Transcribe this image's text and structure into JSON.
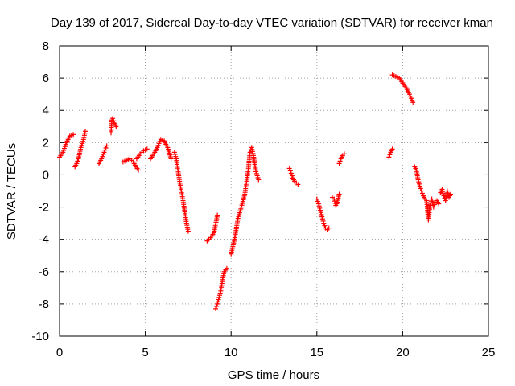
{
  "chart_data": {
    "type": "scatter",
    "title": "Day 139 of 2017, Sidereal Day-to-day VTEC variation (SDTVAR) for receiver kman",
    "xlabel": "GPS time / hours",
    "ylabel": "SDTVAR / TECUs",
    "xlim": [
      0,
      25
    ],
    "ylim": [
      -10,
      8
    ],
    "xticks": [
      0,
      5,
      10,
      15,
      20,
      25
    ],
    "yticks": [
      -10,
      -8,
      -6,
      -4,
      -2,
      0,
      2,
      4,
      6,
      8
    ],
    "grid": true,
    "marker": "+",
    "marker_color": "#ff0000",
    "segments": [
      {
        "x": [
          0.0,
          0.2,
          0.4,
          0.6,
          0.8
        ],
        "y": [
          1.1,
          1.4,
          2.0,
          2.4,
          2.5
        ]
      },
      {
        "x": [
          0.9,
          1.0,
          1.1,
          1.25,
          1.4,
          1.5
        ],
        "y": [
          0.5,
          0.7,
          1.0,
          1.7,
          2.2,
          2.7
        ]
      },
      {
        "x": [
          2.3,
          2.45,
          2.6,
          2.75
        ],
        "y": [
          0.7,
          1.0,
          1.4,
          1.8
        ]
      },
      {
        "x": [
          3.0,
          3.05,
          3.1,
          3.2,
          3.3
        ],
        "y": [
          2.6,
          3.4,
          3.5,
          3.2,
          3.0
        ]
      },
      {
        "x": [
          3.7,
          3.9,
          4.1,
          4.3,
          4.45,
          4.6
        ],
        "y": [
          0.8,
          0.9,
          1.0,
          0.8,
          0.5,
          0.3
        ]
      },
      {
        "x": [
          4.5,
          4.7,
          4.9,
          5.1
        ],
        "y": [
          1.0,
          1.3,
          1.5,
          1.6
        ]
      },
      {
        "x": [
          5.3,
          5.5,
          5.7,
          5.9,
          6.1,
          6.3,
          6.5
        ],
        "y": [
          1.0,
          1.3,
          1.7,
          2.2,
          2.1,
          1.7,
          1.0
        ]
      },
      {
        "x": [
          6.7,
          6.8,
          6.9,
          7.0,
          7.1,
          7.2,
          7.3,
          7.4,
          7.5
        ],
        "y": [
          1.4,
          1.0,
          0.3,
          -0.4,
          -1.0,
          -1.6,
          -2.3,
          -3.0,
          -3.5
        ]
      },
      {
        "x": [
          8.6,
          8.8,
          9.0,
          9.2
        ],
        "y": [
          -4.1,
          -3.9,
          -3.6,
          -2.5
        ]
      },
      {
        "x": [
          9.1,
          9.2,
          9.3,
          9.4,
          9.5,
          9.6,
          9.75
        ],
        "y": [
          -8.3,
          -8.0,
          -7.6,
          -7.2,
          -6.5,
          -6.0,
          -5.8
        ]
      },
      {
        "x": [
          10.0,
          10.2,
          10.4,
          10.6,
          10.8,
          11.0,
          11.1,
          11.2,
          11.3,
          11.45,
          11.6
        ],
        "y": [
          -4.9,
          -4.0,
          -2.7,
          -2.0,
          -1.2,
          0.3,
          1.4,
          1.7,
          1.2,
          0.2,
          -0.3
        ]
      },
      {
        "x": [
          13.4,
          13.5,
          13.6,
          13.7,
          13.8,
          13.9
        ],
        "y": [
          0.4,
          0.1,
          -0.2,
          -0.4,
          -0.5,
          -0.6
        ]
      },
      {
        "x": [
          15.0,
          15.1,
          15.2,
          15.3,
          15.4,
          15.5,
          15.6,
          15.7
        ],
        "y": [
          -1.5,
          -1.8,
          -2.2,
          -2.6,
          -3.0,
          -3.3,
          -3.4,
          -3.3
        ]
      },
      {
        "x": [
          15.9,
          16.0,
          16.1,
          16.2,
          16.3
        ],
        "y": [
          -1.4,
          -1.5,
          -1.9,
          -1.7,
          -1.2
        ]
      },
      {
        "x": [
          16.3,
          16.4,
          16.5,
          16.6
        ],
        "y": [
          0.7,
          1.0,
          1.2,
          1.3
        ]
      },
      {
        "x": [
          19.2,
          19.3,
          19.4
        ],
        "y": [
          1.1,
          1.4,
          1.6
        ]
      },
      {
        "x": [
          19.4,
          19.6,
          19.8,
          20.0,
          20.2,
          20.4,
          20.6
        ],
        "y": [
          6.2,
          6.1,
          6.0,
          5.7,
          5.4,
          5.0,
          4.5
        ]
      },
      {
        "x": [
          20.7,
          20.8,
          20.9,
          21.0,
          21.1,
          21.2,
          21.3
        ],
        "y": [
          0.5,
          0.3,
          -0.3,
          -0.7,
          -1.0,
          -1.3,
          -1.5
        ]
      },
      {
        "x": [
          21.4,
          21.5,
          21.6,
          21.7,
          21.8,
          21.9,
          22.0,
          22.1
        ],
        "y": [
          -1.6,
          -2.8,
          -1.9,
          -1.5,
          -2.0,
          -1.7,
          -1.6,
          -1.8
        ]
      },
      {
        "x": [
          22.2,
          22.3,
          22.4,
          22.5,
          22.6,
          22.7,
          22.8
        ],
        "y": [
          -1.1,
          -0.9,
          -1.3,
          -1.6,
          -1.0,
          -1.4,
          -1.2
        ]
      }
    ]
  }
}
